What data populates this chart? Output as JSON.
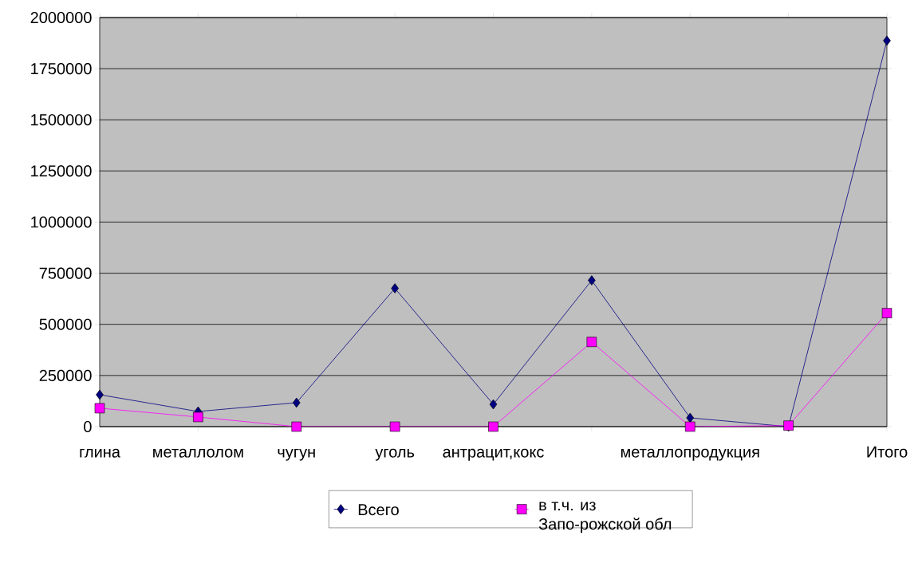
{
  "chart_data": {
    "type": "line",
    "categories": [
      "глина",
      "металлолом",
      "чугун",
      "уголь",
      "антрацит,кокс",
      null,
      "металлопродукция",
      null,
      "Итого"
    ],
    "series": [
      {
        "name": "Всего",
        "color": "#000080",
        "marker": "diamond",
        "values": [
          156000,
          74000,
          117000,
          676000,
          109000,
          715000,
          43000,
          0,
          1887000
        ]
      },
      {
        "name": "в т.ч. из Запо-рожской обл",
        "color": "#ff00ff",
        "marker": "square",
        "values": [
          90000,
          47000,
          0,
          0,
          0,
          414000,
          0,
          5000,
          555000
        ]
      }
    ],
    "ylim": [
      0,
      2000000
    ],
    "yticks": [
      0,
      250000,
      500000,
      750000,
      1000000,
      1250000,
      1500000,
      1750000,
      2000000
    ],
    "grid": "y",
    "legend": "bottom"
  }
}
